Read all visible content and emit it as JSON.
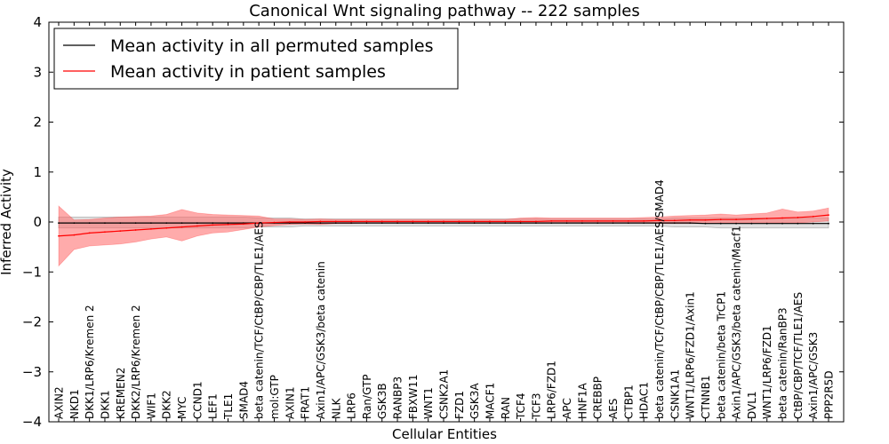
{
  "chart_data": {
    "type": "line",
    "title": "Canonical Wnt signaling pathway -- 222 samples",
    "xlabel": "Cellular Entities",
    "ylabel": "Inferred Activity",
    "ylim": [
      -4,
      4
    ],
    "yticks": [
      4,
      3,
      2,
      1,
      0,
      -1,
      -2,
      -3,
      -4
    ],
    "ytick_labels": [
      "4",
      "3",
      "2",
      "1",
      "0",
      "−1",
      "−2",
      "−3",
      "−4"
    ],
    "legend_position": "top-left",
    "grid": false,
    "categories": [
      "AXIN2",
      "NKD1",
      "DKK1/LRP6/Kremen 2",
      "DKK1",
      "KREMEN2",
      "DKK2/LRP6/Kremen 2",
      "WIF1",
      "DKK2",
      "MYC",
      "CCND1",
      "LEF1",
      "TLE1",
      "SMAD4",
      "beta catenin/TCF/CtBP/CBP/TLE1/AES",
      "mol:GTP",
      "AXIN1",
      "FRAT1",
      "Axin1/APC/GSK3/beta catenin",
      "NLK",
      "LRP6",
      "Ran/GTP",
      "GSK3B",
      "RANBP3",
      "FBXW11",
      "WNT1",
      "CSNK2A1",
      "FZD1",
      "GSK3A",
      "MACF1",
      "RAN",
      "TCF4",
      "TCF3",
      "LRP6/FZD1",
      "APC",
      "HNF1A",
      "CREBBP",
      "AES",
      "CTBP1",
      "HDAC1",
      "beta catenin/TCF/CtBP/CBP/TLE1/AES/SMAD4",
      "CSNK1A1",
      "WNT1/LRP6/FZD1/Axin1",
      "CTNNB1",
      "beta catenin/beta TrCP1",
      "Axin1/APC/GSK3/beta catenin/Macf1",
      "DVL1",
      "WNT1/LRP6/FZD1",
      "beta catenin/RanBP3",
      "CtBP/CBP/TCF/TLE1/AES",
      "Axin1/APC/GSK3",
      "PPP2R5D"
    ],
    "series": [
      {
        "name": "Mean activity in all permuted samples",
        "color": "#000000",
        "band_color": "#bbbbbb",
        "values": [
          -0.02,
          -0.02,
          -0.02,
          -0.02,
          -0.02,
          -0.02,
          -0.02,
          -0.02,
          -0.02,
          -0.02,
          -0.02,
          -0.02,
          -0.02,
          -0.02,
          -0.02,
          -0.02,
          -0.02,
          -0.02,
          -0.02,
          -0.02,
          -0.02,
          -0.02,
          -0.02,
          -0.02,
          -0.02,
          -0.02,
          -0.02,
          -0.02,
          -0.02,
          -0.02,
          -0.02,
          -0.02,
          -0.02,
          -0.02,
          -0.02,
          -0.02,
          -0.02,
          -0.02,
          -0.02,
          -0.02,
          -0.02,
          -0.02,
          -0.03,
          -0.03,
          -0.03,
          -0.03,
          -0.03,
          -0.03,
          -0.03,
          -0.03,
          -0.03
        ],
        "lower": [
          -0.12,
          -0.12,
          -0.12,
          -0.12,
          -0.12,
          -0.12,
          -0.12,
          -0.12,
          -0.12,
          -0.12,
          -0.12,
          -0.12,
          -0.12,
          -0.1,
          -0.1,
          -0.1,
          -0.08,
          -0.08,
          -0.08,
          -0.08,
          -0.08,
          -0.08,
          -0.08,
          -0.08,
          -0.08,
          -0.08,
          -0.08,
          -0.08,
          -0.08,
          -0.08,
          -0.08,
          -0.08,
          -0.08,
          -0.08,
          -0.08,
          -0.08,
          -0.08,
          -0.08,
          -0.08,
          -0.08,
          -0.1,
          -0.1,
          -0.1,
          -0.12,
          -0.12,
          -0.12,
          -0.12,
          -0.12,
          -0.12,
          -0.12,
          -0.12
        ],
        "upper": [
          0.1,
          0.1,
          0.1,
          0.1,
          0.1,
          0.1,
          0.1,
          0.1,
          0.1,
          0.1,
          0.1,
          0.1,
          0.1,
          0.08,
          0.08,
          0.08,
          0.06,
          0.06,
          0.06,
          0.06,
          0.06,
          0.06,
          0.06,
          0.06,
          0.06,
          0.06,
          0.06,
          0.06,
          0.06,
          0.06,
          0.06,
          0.06,
          0.06,
          0.06,
          0.06,
          0.06,
          0.06,
          0.06,
          0.06,
          0.06,
          0.08,
          0.08,
          0.08,
          0.08,
          0.08,
          0.08,
          0.08,
          0.08,
          0.08,
          0.08,
          0.08
        ]
      },
      {
        "name": "Mean activity in patient samples",
        "color": "#ff0000",
        "band_color": "#ff6666",
        "values": [
          -0.28,
          -0.26,
          -0.22,
          -0.2,
          -0.18,
          -0.16,
          -0.14,
          -0.12,
          -0.1,
          -0.08,
          -0.06,
          -0.05,
          -0.04,
          -0.02,
          -0.01,
          0.0,
          0.0,
          0.01,
          0.01,
          0.01,
          0.01,
          0.01,
          0.01,
          0.01,
          0.01,
          0.01,
          0.01,
          0.01,
          0.01,
          0.01,
          0.01,
          0.01,
          0.02,
          0.02,
          0.02,
          0.02,
          0.02,
          0.02,
          0.02,
          0.03,
          0.03,
          0.04,
          0.04,
          0.05,
          0.05,
          0.06,
          0.07,
          0.08,
          0.09,
          0.11,
          0.14
        ],
        "lower": [
          -0.88,
          -0.55,
          -0.48,
          -0.46,
          -0.44,
          -0.4,
          -0.34,
          -0.3,
          -0.38,
          -0.28,
          -0.22,
          -0.2,
          -0.15,
          -0.1,
          -0.07,
          -0.05,
          -0.04,
          -0.05,
          -0.03,
          -0.03,
          -0.02,
          -0.02,
          -0.02,
          -0.02,
          -0.02,
          -0.02,
          -0.02,
          -0.02,
          -0.02,
          -0.02,
          -0.02,
          -0.02,
          -0.02,
          -0.02,
          -0.02,
          -0.02,
          -0.02,
          -0.02,
          -0.02,
          -0.03,
          -0.03,
          -0.03,
          -0.03,
          -0.02,
          -0.02,
          -0.02,
          -0.02,
          -0.02,
          -0.02,
          0.0,
          0.02
        ],
        "upper": [
          0.32,
          0.04,
          0.05,
          0.08,
          0.1,
          0.11,
          0.12,
          0.15,
          0.25,
          0.18,
          0.15,
          0.14,
          0.13,
          0.12,
          0.06,
          0.06,
          0.05,
          0.06,
          0.05,
          0.05,
          0.05,
          0.05,
          0.05,
          0.05,
          0.05,
          0.05,
          0.05,
          0.05,
          0.05,
          0.05,
          0.08,
          0.09,
          0.08,
          0.08,
          0.08,
          0.08,
          0.08,
          0.08,
          0.09,
          0.1,
          0.12,
          0.13,
          0.14,
          0.16,
          0.14,
          0.16,
          0.18,
          0.26,
          0.2,
          0.22,
          0.28
        ]
      }
    ]
  }
}
